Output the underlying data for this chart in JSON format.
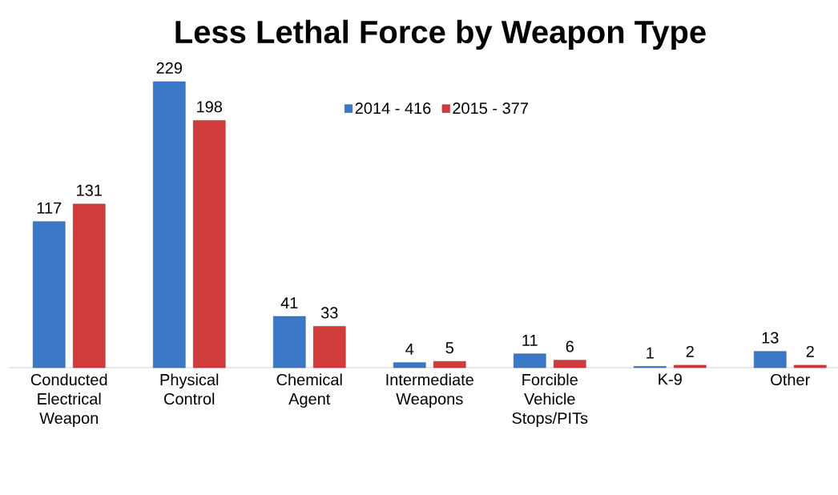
{
  "chart_data": {
    "type": "bar",
    "title": "Less Lethal Force by Weapon Type",
    "categories": [
      "Conducted Electrical Weapon",
      "Physical Control",
      "Chemical Agent",
      "Intermediate Weapons",
      "Forcible Vehicle Stops/PITs",
      "K-9",
      "Other"
    ],
    "series": [
      {
        "name": "2014 - 416",
        "color": "#3c78c8",
        "values": [
          117,
          229,
          41,
          4,
          11,
          1,
          13
        ]
      },
      {
        "name": "2015 - 377",
        "color": "#d03c3c",
        "values": [
          131,
          198,
          33,
          5,
          6,
          2,
          2
        ]
      }
    ],
    "data_labels": true,
    "legend": "top"
  }
}
